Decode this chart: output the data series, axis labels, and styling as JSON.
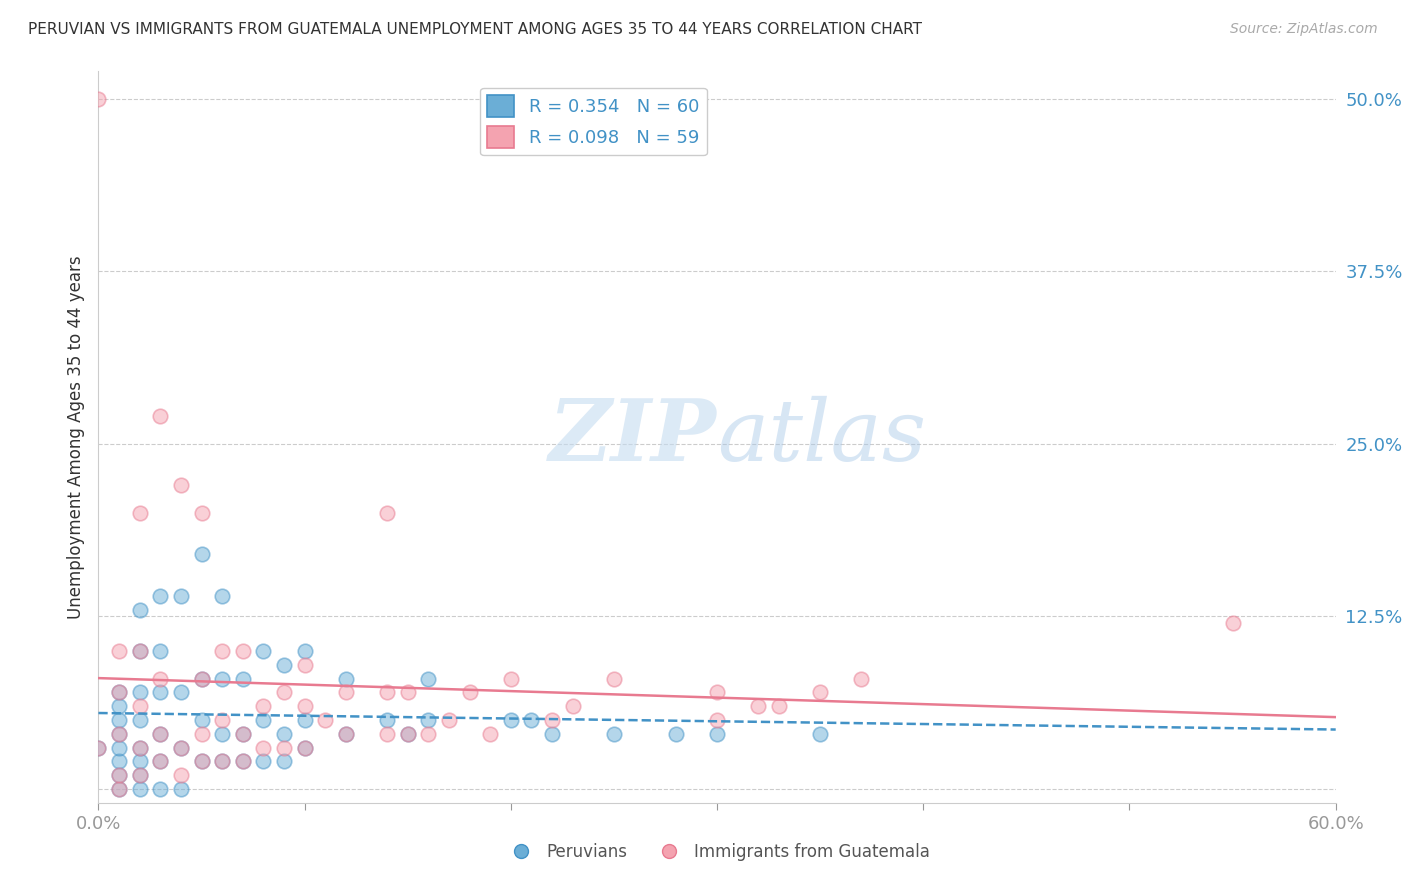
{
  "title": "PERUVIAN VS IMMIGRANTS FROM GUATEMALA UNEMPLOYMENT AMONG AGES 35 TO 44 YEARS CORRELATION CHART",
  "source": "Source: ZipAtlas.com",
  "ylabel": "Unemployment Among Ages 35 to 44 years",
  "xlim": [
    0.0,
    0.6
  ],
  "ylim": [
    -0.01,
    0.52
  ],
  "xticks": [
    0.0,
    0.1,
    0.2,
    0.3,
    0.4,
    0.5,
    0.6
  ],
  "yticks_right": [
    0.0,
    0.125,
    0.25,
    0.375,
    0.5
  ],
  "yticklabels_right": [
    "",
    "12.5%",
    "25.0%",
    "37.5%",
    "50.0%"
  ],
  "blue_color": "#6baed6",
  "pink_color": "#f4a3b0",
  "blue_edge_color": "#4292c6",
  "pink_edge_color": "#e87a90",
  "blue_line_color": "#4292c6",
  "pink_line_color": "#e87a90",
  "legend_blue_text": "R = 0.354   N = 60",
  "legend_pink_text": "R = 0.098   N = 59",
  "legend_label_blue": "Peruvians",
  "legend_label_pink": "Immigrants from Guatemala",
  "peruvians_x": [
    0.0,
    0.01,
    0.01,
    0.01,
    0.01,
    0.01,
    0.01,
    0.01,
    0.01,
    0.02,
    0.02,
    0.02,
    0.02,
    0.02,
    0.02,
    0.02,
    0.02,
    0.03,
    0.03,
    0.03,
    0.03,
    0.03,
    0.03,
    0.04,
    0.04,
    0.04,
    0.04,
    0.05,
    0.05,
    0.05,
    0.05,
    0.06,
    0.06,
    0.06,
    0.06,
    0.07,
    0.07,
    0.07,
    0.08,
    0.08,
    0.08,
    0.09,
    0.09,
    0.09,
    0.1,
    0.1,
    0.1,
    0.12,
    0.12,
    0.14,
    0.15,
    0.16,
    0.16,
    0.2,
    0.21,
    0.22,
    0.25,
    0.28,
    0.3,
    0.35
  ],
  "peruvians_y": [
    0.03,
    0.0,
    0.01,
    0.02,
    0.03,
    0.04,
    0.05,
    0.06,
    0.07,
    0.0,
    0.01,
    0.02,
    0.03,
    0.05,
    0.07,
    0.1,
    0.13,
    0.0,
    0.02,
    0.04,
    0.07,
    0.1,
    0.14,
    0.0,
    0.03,
    0.07,
    0.14,
    0.02,
    0.05,
    0.08,
    0.17,
    0.02,
    0.04,
    0.08,
    0.14,
    0.02,
    0.04,
    0.08,
    0.02,
    0.05,
    0.1,
    0.02,
    0.04,
    0.09,
    0.03,
    0.05,
    0.1,
    0.04,
    0.08,
    0.05,
    0.04,
    0.05,
    0.08,
    0.05,
    0.05,
    0.04,
    0.04,
    0.04,
    0.04,
    0.04
  ],
  "guatemala_x": [
    0.0,
    0.01,
    0.01,
    0.01,
    0.01,
    0.01,
    0.02,
    0.02,
    0.02,
    0.02,
    0.02,
    0.03,
    0.03,
    0.03,
    0.03,
    0.04,
    0.04,
    0.04,
    0.05,
    0.05,
    0.05,
    0.05,
    0.06,
    0.06,
    0.06,
    0.07,
    0.07,
    0.07,
    0.08,
    0.08,
    0.09,
    0.09,
    0.1,
    0.1,
    0.1,
    0.11,
    0.12,
    0.12,
    0.14,
    0.14,
    0.14,
    0.15,
    0.15,
    0.16,
    0.17,
    0.18,
    0.19,
    0.2,
    0.22,
    0.23,
    0.25,
    0.3,
    0.3,
    0.32,
    0.33,
    0.35,
    0.37,
    0.55,
    0.0
  ],
  "guatemala_y": [
    0.03,
    0.0,
    0.01,
    0.04,
    0.07,
    0.1,
    0.01,
    0.03,
    0.06,
    0.1,
    0.2,
    0.02,
    0.04,
    0.08,
    0.27,
    0.01,
    0.03,
    0.22,
    0.02,
    0.04,
    0.08,
    0.2,
    0.02,
    0.05,
    0.1,
    0.02,
    0.04,
    0.1,
    0.03,
    0.06,
    0.03,
    0.07,
    0.03,
    0.06,
    0.09,
    0.05,
    0.04,
    0.07,
    0.04,
    0.07,
    0.2,
    0.04,
    0.07,
    0.04,
    0.05,
    0.07,
    0.04,
    0.08,
    0.05,
    0.06,
    0.08,
    0.05,
    0.07,
    0.06,
    0.06,
    0.07,
    0.08,
    0.12,
    0.5
  ],
  "watermark_zip": "ZIP",
  "watermark_atlas": "atlas",
  "background_color": "#ffffff",
  "grid_color": "#cccccc"
}
